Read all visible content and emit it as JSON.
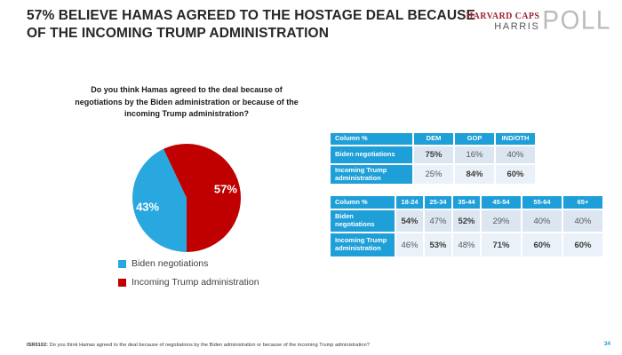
{
  "slide": {
    "title": "57% BELIEVE HAMAS AGREED TO THE HOSTAGE DEAL BECAUSE OF THE INCOMING TRUMP ADMINISTRATION",
    "footnote_code": "ISR0102:",
    "footnote_text": "Do you think Hamas agreed to the deal because of negotiations by the Biden administration or because of the incoming Trump administration?",
    "page_number": "34"
  },
  "logo": {
    "harvard_caps": "HARVARD CAPS",
    "harris": "HARRIS",
    "poll": "POLL"
  },
  "colors": {
    "table_blue": "#1E9FD8",
    "row_odd": "#DCE6F1",
    "row_even": "#EAF1F8",
    "pie_blue": "#29A8DF",
    "pie_red": "#C00000",
    "crimson": "#9D2235",
    "logo_gray": "#B9BABC"
  },
  "chart_data": {
    "type": "pie",
    "title": "Do you think Hamas agreed to the deal because of negotiations by the Biden administration or because of the incoming Trump administration?",
    "rotation_deg": 180,
    "legend_position": "bottom",
    "slices": [
      {
        "label": "Biden negotiations",
        "value": 43,
        "display": "43%",
        "color": "#29A8DF"
      },
      {
        "label": "Incoming Trump administration",
        "value": 57,
        "display": "57%",
        "color": "#C00000"
      }
    ]
  },
  "tables": [
    {
      "name": "party-crosstab",
      "headers": [
        "Column %",
        "DEM",
        "GOP",
        "IND/OTH"
      ],
      "rows": [
        {
          "label": "Biden negotiations",
          "cells": [
            {
              "v": "75%",
              "bold": true
            },
            {
              "v": "16%",
              "bold": false
            },
            {
              "v": "40%",
              "bold": false
            }
          ]
        },
        {
          "label": "Incoming Trump administration",
          "cells": [
            {
              "v": "25%",
              "bold": false
            },
            {
              "v": "84%",
              "bold": true
            },
            {
              "v": "60%",
              "bold": true
            }
          ]
        }
      ]
    },
    {
      "name": "age-crosstab",
      "headers": [
        "Column %",
        "18-24",
        "25-34",
        "35-44",
        "45-54",
        "55-64",
        "65+"
      ],
      "rows": [
        {
          "label": "Biden negotiations",
          "cells": [
            {
              "v": "54%",
              "bold": true
            },
            {
              "v": "47%",
              "bold": false
            },
            {
              "v": "52%",
              "bold": true
            },
            {
              "v": "29%",
              "bold": false
            },
            {
              "v": "40%",
              "bold": false
            },
            {
              "v": "40%",
              "bold": false
            }
          ]
        },
        {
          "label": "Incoming Trump administration",
          "cells": [
            {
              "v": "46%",
              "bold": false
            },
            {
              "v": "53%",
              "bold": true
            },
            {
              "v": "48%",
              "bold": false
            },
            {
              "v": "71%",
              "bold": true
            },
            {
              "v": "60%",
              "bold": true
            },
            {
              "v": "60%",
              "bold": true
            }
          ]
        }
      ]
    }
  ]
}
